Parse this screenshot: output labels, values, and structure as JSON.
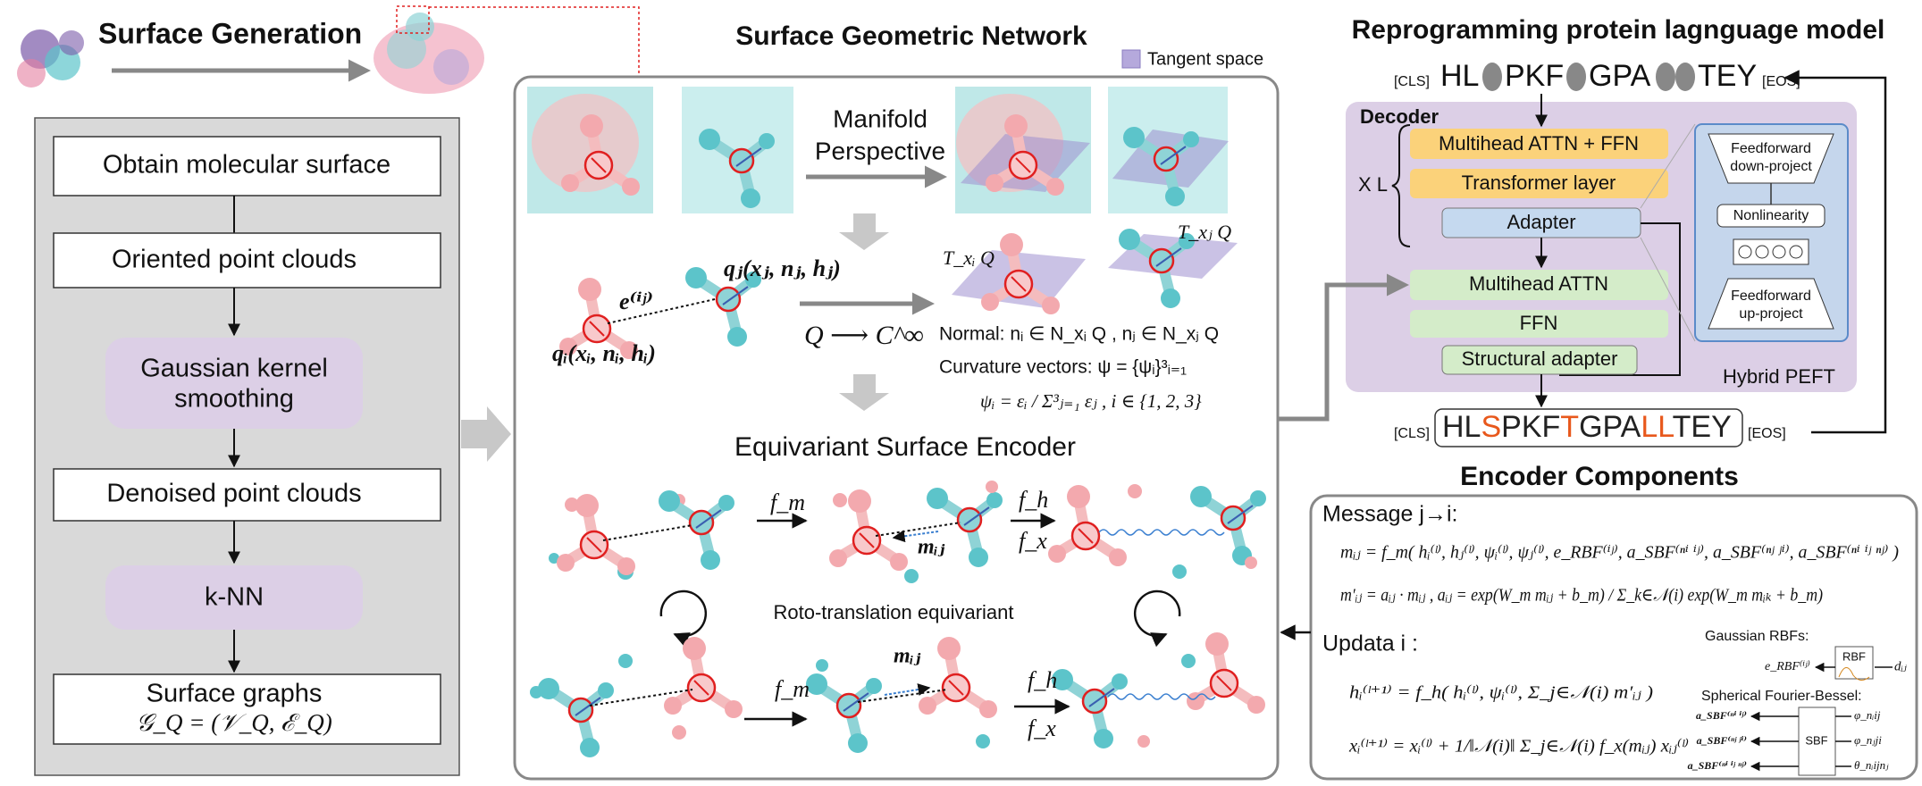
{
  "surface_generation": {
    "title": "Surface Generation",
    "steps": [
      [
        "Obtain molecular surface"
      ],
      [
        "Oriented point clouds"
      ],
      [
        "Gaussian kernel",
        "smoothing"
      ],
      [
        "Denoised point clouds"
      ],
      [
        "k-NN"
      ],
      [
        "Surface graphs",
        "𝒢_Q = (𝒱_Q, ℰ_Q)"
      ]
    ]
  },
  "network": {
    "title": "Surface Geometric Network",
    "legend": "Tangent space",
    "manifold": [
      "Manifold",
      "Perspective"
    ],
    "q_j": "qⱼ(xⱼ, nⱼ, hⱼ)",
    "q_i": "qᵢ(xᵢ, nᵢ, hᵢ)",
    "edge": "e⁽ⁱʲ⁾",
    "map": "Q ⟶ C^∞",
    "t_xi": "T_xᵢ Q",
    "t_xj": "T_xⱼ Q",
    "normal": "Normal: nᵢ ∈ N_xᵢ Q , nⱼ ∈ N_xⱼ Q",
    "curvature": "Curvature vectors: ψ = {ψᵢ}³ᵢ₌₁",
    "psi": "ψᵢ = εᵢ / Σ³ⱼ₌₁ εⱼ , i ∈ {1, 2, 3}",
    "encoder_title": "Equivariant Surface Encoder",
    "f_m": "f_m",
    "f_h": "f_h",
    "f_x": "f_x",
    "m_ij": "mᵢⱼ",
    "equivariant": "Roto-translation equivariant"
  },
  "plm": {
    "title": "Reprogramming protein lagnguage model",
    "cls": "[CLS]",
    "eos": "[EOS]",
    "input": [
      "HL",
      "PKF",
      "GPA",
      "TEY"
    ],
    "output": [
      {
        "text": "HL",
        "color": "#222222"
      },
      {
        "text": "S",
        "color": "#e8581c"
      },
      {
        "text": "PKF",
        "color": "#222222"
      },
      {
        "text": "T",
        "color": "#e8581c"
      },
      {
        "text": "GPA",
        "color": "#222222"
      },
      {
        "text": "LL",
        "color": "#e8581c"
      },
      {
        "text": "TEY",
        "color": "#222222"
      }
    ],
    "decoder": "Decoder",
    "repeat": "X L",
    "layers": [
      "Multihead ATTN + FFN",
      "Transformer layer",
      "Adapter",
      "Multihead ATTN",
      "FFN",
      "Structural adapter"
    ],
    "peft": {
      "down": [
        "Feedforward",
        "down-project"
      ],
      "nonlinearity": "Nonlinearity",
      "up": [
        "Feedforward",
        "up-project"
      ],
      "label": "Hybrid PEFT"
    }
  },
  "encoder_components": {
    "title": "Encoder Components",
    "message": "Message j→i:",
    "m_ij": "mᵢⱼ = f_m( hᵢ⁽ˡ⁾, hⱼ⁽ˡ⁾, ψᵢ⁽ˡ⁾, ψⱼ⁽ˡ⁾, e_RBF⁽ⁱʲ⁾, a_SBF⁽ⁿⁱ ⁱʲ⁾, a_SBF⁽ⁿʲ ʲⁱ⁾, a_SBF⁽ⁿⁱ ⁱʲ ⁿʲ⁾ )",
    "m_prime": "m′ᵢⱼ = aᵢⱼ · mᵢⱼ ,   aᵢⱼ = exp(W_m mᵢⱼ + b_m) / Σ_k∈𝒩(i) exp(W_m mᵢₖ + b_m)",
    "update": "Updata i :",
    "h_update": "hᵢ⁽ˡ⁺¹⁾ = f_h( hᵢ⁽ˡ⁾, ψᵢ⁽ˡ⁾, Σ_j∈𝒩(i) m′ᵢⱼ )",
    "x_update": "xᵢ⁽ˡ⁺¹⁾ = xᵢ⁽ˡ⁾ + 1/‖𝒩(i)‖ Σ_j∈𝒩(i) f_x(mᵢⱼ) xᵢⱼ⁽ˡ⁾",
    "rbf_title": "Gaussian RBFs:",
    "rbf": "RBF",
    "e_rbf": "e_RBF⁽ⁱʲ⁾",
    "d_ij": "dᵢⱼ",
    "sbf_title": "Spherical Fourier-Bessel:",
    "sbf": "SBF",
    "a_sbf": [
      "a_SBF⁽ⁿⁱ ⁱʲ⁾",
      "a_SBF⁽ⁿʲ ʲⁱ⁾",
      "a_SBF⁽ⁿⁱ ⁱʲ ⁿʲ⁾"
    ],
    "phi": [
      "φ_nᵢij",
      "φ_nⱼji",
      "θ_nᵢijnⱼ"
    ]
  }
}
